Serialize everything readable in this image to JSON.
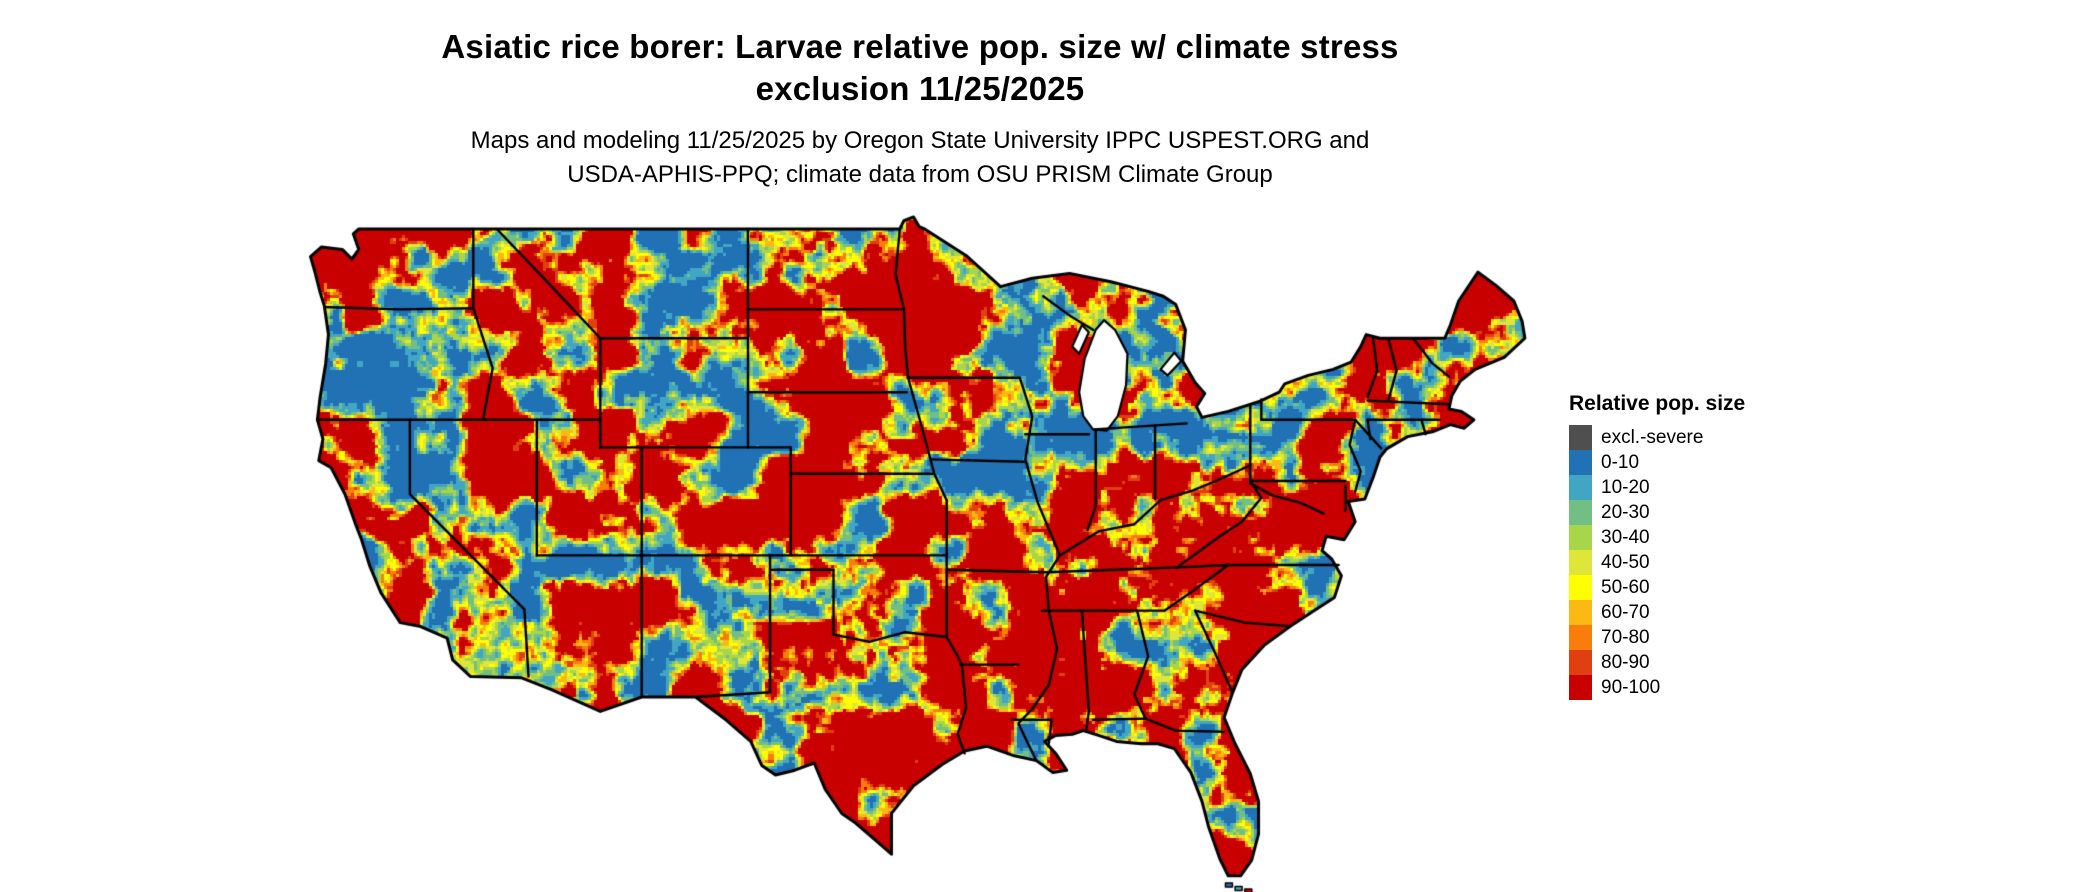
{
  "title": {
    "line1": "Asiatic rice borer: Larvae relative pop. size w/ climate stress",
    "line2": "exclusion 11/25/2025"
  },
  "subtitle": {
    "line1": "Maps and modeling 11/25/2025 by Oregon State University IPPC USPEST.ORG and",
    "line2": "USDA-APHIS-PPQ; climate data from OSU PRISM Climate Group"
  },
  "legend": {
    "title": "Relative pop. size",
    "items": [
      {
        "label": "excl.-severe",
        "color": "#4f4f4f"
      },
      {
        "label": "0-10",
        "color": "#2171b5"
      },
      {
        "label": "10-20",
        "color": "#41a6c4"
      },
      {
        "label": "20-30",
        "color": "#72bf85"
      },
      {
        "label": "30-40",
        "color": "#a8d64a"
      },
      {
        "label": "40-50",
        "color": "#dfe63a"
      },
      {
        "label": "50-60",
        "color": "#ffff00"
      },
      {
        "label": "60-70",
        "color": "#fdb913"
      },
      {
        "label": "70-80",
        "color": "#f97d0b"
      },
      {
        "label": "80-90",
        "color": "#e0400f"
      },
      {
        "label": "90-100",
        "color": "#c90000"
      }
    ]
  }
}
